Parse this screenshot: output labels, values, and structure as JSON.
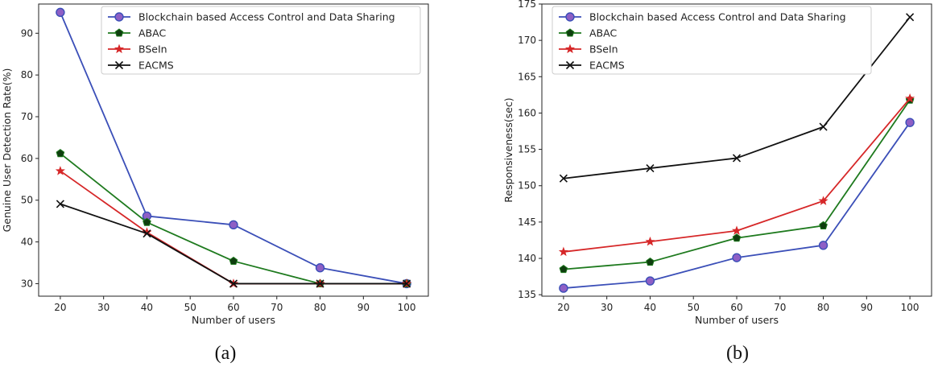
{
  "chart_data": [
    {
      "type": "line",
      "caption": "(a)",
      "xlabel": "Number of users",
      "ylabel": "Genuine User Detection Rate(%)",
      "xlim": [
        15,
        105
      ],
      "ylim": [
        27,
        97
      ],
      "xticks": [
        20,
        30,
        40,
        50,
        60,
        70,
        80,
        90,
        100
      ],
      "yticks": [
        30,
        40,
        50,
        60,
        70,
        80,
        90
      ],
      "legend_position": "top-right",
      "grid": false,
      "x": [
        20,
        40,
        60,
        80,
        100
      ],
      "series": [
        {
          "name": "Blockchain based Access Control and Data Sharing",
          "color": "#3b4fb8",
          "marker": "circle",
          "values": [
            95,
            46.2,
            44.1,
            33.8,
            30
          ]
        },
        {
          "name": "ABAC",
          "color": "#1e7a1e",
          "marker": "pentagon",
          "values": [
            61.2,
            44.7,
            35.4,
            30,
            30
          ]
        },
        {
          "name": "BSeIn",
          "color": "#d62728",
          "marker": "star",
          "values": [
            57,
            42.3,
            30,
            30,
            30
          ]
        },
        {
          "name": "EACMS",
          "color": "#111111",
          "marker": "x",
          "values": [
            49.1,
            42,
            30,
            30,
            30
          ]
        }
      ]
    },
    {
      "type": "line",
      "caption": "(b)",
      "xlabel": "Number of users",
      "ylabel": "Responsiveness(sec)",
      "xlim": [
        15,
        105
      ],
      "ylim": [
        134.8,
        175
      ],
      "xticks": [
        20,
        30,
        40,
        50,
        60,
        70,
        80,
        90,
        100
      ],
      "yticks": [
        135,
        140,
        145,
        150,
        155,
        160,
        165,
        170,
        175
      ],
      "legend_position": "top-left",
      "grid": false,
      "x": [
        20,
        40,
        60,
        80,
        100
      ],
      "series": [
        {
          "name": "Blockchain based Access Control and Data Sharing",
          "color": "#3b4fb8",
          "marker": "circle",
          "values": [
            135.9,
            136.9,
            140.1,
            141.8,
            158.7
          ]
        },
        {
          "name": "ABAC",
          "color": "#1e7a1e",
          "marker": "pentagon",
          "values": [
            138.5,
            139.5,
            142.8,
            144.5,
            161.8
          ]
        },
        {
          "name": "BSeIn",
          "color": "#d62728",
          "marker": "star",
          "values": [
            140.9,
            142.3,
            143.8,
            147.9,
            162
          ]
        },
        {
          "name": "EACMS",
          "color": "#111111",
          "marker": "x",
          "values": [
            151,
            152.4,
            153.8,
            158.1,
            173.2
          ]
        }
      ]
    }
  ]
}
